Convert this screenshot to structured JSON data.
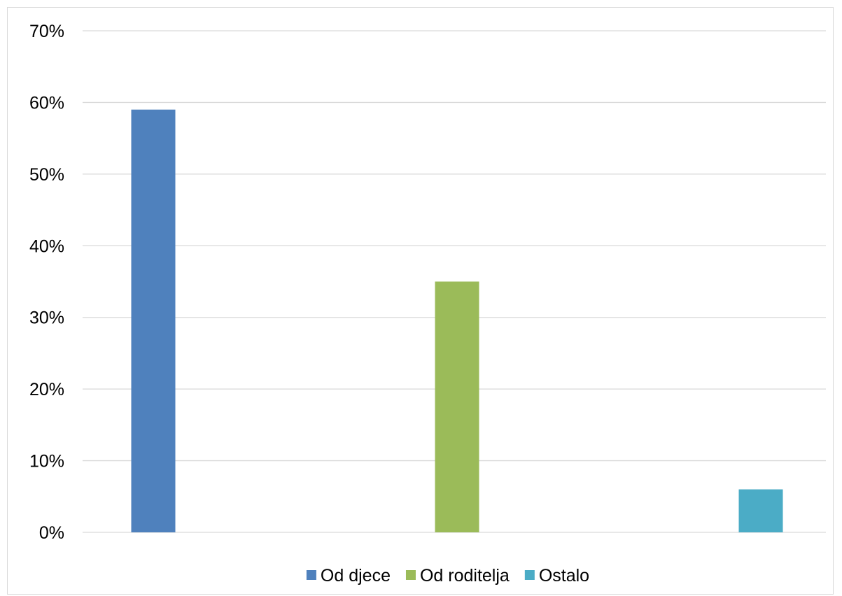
{
  "chart_data": {
    "type": "bar",
    "title": "",
    "xlabel": "",
    "ylabel": "",
    "ylim": [
      0,
      0.7
    ],
    "ytick_values": [
      0,
      0.1,
      0.2,
      0.3,
      0.4,
      0.5,
      0.6,
      0.7
    ],
    "ytick_labels": [
      "0%",
      "10%",
      "20%",
      "30%",
      "40%",
      "50%",
      "60%",
      "70%"
    ],
    "grid": true,
    "legend_position": "bottom",
    "series": [
      {
        "name": "Od djece",
        "value": 0.59,
        "color": "#4f81bd"
      },
      {
        "name": "Od roditelja",
        "value": 0.35,
        "color": "#9bbb59"
      },
      {
        "name": "Ostalo",
        "value": 0.06,
        "color": "#4bacc6"
      }
    ]
  }
}
